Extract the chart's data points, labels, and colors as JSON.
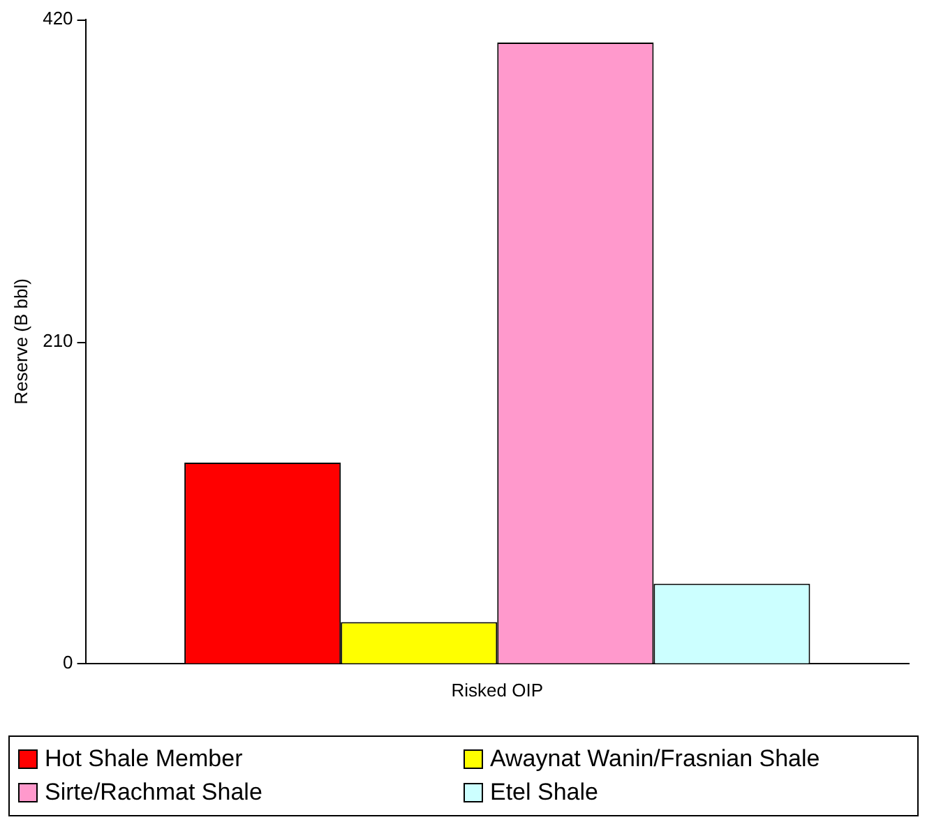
{
  "chart_data": {
    "type": "bar",
    "ylabel": "Reserve (B bbl)",
    "categories": [
      "Risked OIP"
    ],
    "series": [
      {
        "name": "Hot Shale Member",
        "color": "#ff0000",
        "values": [
          131
        ]
      },
      {
        "name": "Awaynat Wanin/Frasnian Shale",
        "color": "#ffff00",
        "values": [
          27
        ]
      },
      {
        "name": "Sirte/Rachmat Shale",
        "color": "#ff99cc",
        "values": [
          405
        ]
      },
      {
        "name": "Etel Shale",
        "color": "#ccffff",
        "values": [
          52
        ]
      }
    ],
    "ylim": [
      0,
      420
    ],
    "yticks": [
      0,
      210,
      420
    ],
    "grid": false,
    "legend": "bottom"
  }
}
